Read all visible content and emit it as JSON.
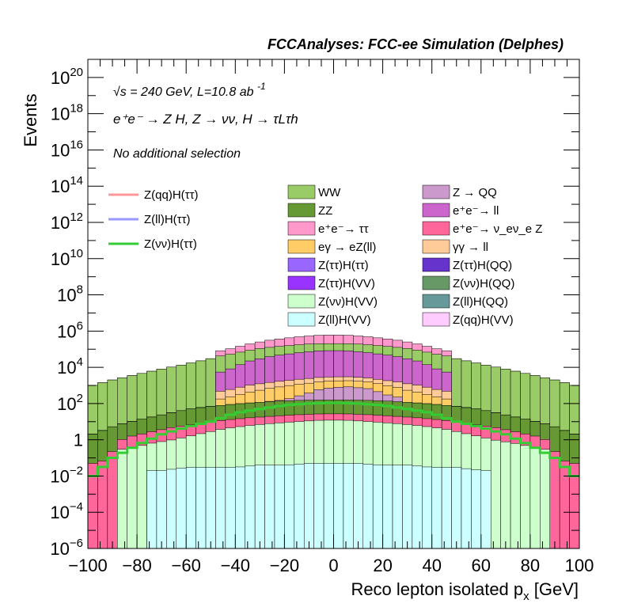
{
  "header": {
    "title": "FCCAnalyses: FCC-ee Simulation (Delphes)"
  },
  "annotations": {
    "energy": "√s = 240 GeV, L=10.8 ab",
    "energy_sup": "-1",
    "process": "e⁺e⁻ → Z H, Z → νν, H → τLτh",
    "selection": "No additional selection"
  },
  "chart_data": {
    "type": "bar",
    "stacked": true,
    "histogram": true,
    "xlabel": "Reco lepton isolated p",
    "xlabel_sub": "x",
    "xlabel_unit": " [GeV]",
    "ylabel": "Events",
    "xlim": [
      -100,
      100
    ],
    "ylim": [
      1e-06,
      1e+21
    ],
    "yscale": "log",
    "bin_width": 4,
    "xticks": [
      "−100",
      "−80",
      "−60",
      "−40",
      "−20",
      "0",
      "20",
      "40",
      "60",
      "80",
      "100"
    ],
    "yticks": [
      "10−6",
      "10−4",
      "10−2",
      "1",
      "102",
      "104",
      "106",
      "108",
      "1010",
      "1012",
      "1014",
      "1016",
      "1018",
      "1020"
    ],
    "legend_placement": "top-center",
    "stack_layers": [
      {
        "name": "Z(ll)H(VV)",
        "color": "#ccffff",
        "values": {
          "-70": 0.02,
          "-60": 0.03,
          "-50": 0.03,
          "-40": 0.03,
          "-30": 0.04,
          "-20": 0.04,
          "-10": 0.05,
          "0": 0.05,
          "10": 0.05,
          "20": 0.04,
          "30": 0.04,
          "40": 0.03,
          "50": 0.03,
          "60": 0.02
        }
      },
      {
        "name": "Z(νν)H(VV)",
        "color": "#ccffcc",
        "values": {
          "-85": 0.3,
          "-75": 0.6,
          "-65": 1.0,
          "-55": 2.0,
          "-45": 4.0,
          "-35": 6.0,
          "-25": 8.0,
          "-15": 10.0,
          "-5": 12.0,
          "5": 12.0,
          "15": 10.0,
          "25": 8.0,
          "35": 6.0,
          "45": 4.0,
          "55": 2.0,
          "65": 1.0,
          "75": 0.6,
          "85": 0.3
        }
      },
      {
        "name": "e⁺e⁻→ ν_eν_e Z",
        "color": "#ff6699",
        "values": {
          "-95": 0.05,
          "-85": 1.0,
          "-75": 2.0,
          "-65": 4.0,
          "-55": 6.0,
          "-45": 8.0,
          "-35": 10.0,
          "-25": 12.0,
          "-15": 14.0,
          "-5": 15.0,
          "5": 15.0,
          "15": 14.0,
          "25": 12.0,
          "35": 10.0,
          "45": 8.0,
          "55": 6.0,
          "65": 4.0,
          "75": 2.0,
          "85": 1.0,
          "95": 0.05
        }
      },
      {
        "name": "ZZ",
        "color": "#669933",
        "values": {
          "-98": 2,
          "-90": 5,
          "-80": 10,
          "-70": 20,
          "-60": 40,
          "-50": 60,
          "-40": 80,
          "-30": 100,
          "-20": 120,
          "-10": 130,
          "0": 130,
          "10": 130,
          "20": 120,
          "30": 100,
          "40": 80,
          "50": 60,
          "60": 40,
          "70": 20,
          "80": 10,
          "90": 5,
          "98": 2
        }
      },
      {
        "name": "Z → QQ",
        "color": "#cc99cc",
        "values": {
          "-25": 5,
          "-15": 100,
          "-5": 500,
          "5": 700,
          "15": 500,
          "25": 100
        }
      },
      {
        "name": "eγ → eZ(ll)",
        "color": "#ffcc66",
        "values": {
          "-45": 100,
          "-35": 300,
          "-25": 600,
          "-15": 900,
          "-5": 1000,
          "5": 1000,
          "15": 900,
          "25": 600,
          "35": 300,
          "45": 100
        }
      },
      {
        "name": "γγ → ll",
        "color": "#ffcc99",
        "values": {
          "-45": 300,
          "-35": 600,
          "-25": 800,
          "-15": 1000,
          "-5": 1200,
          "5": 1200,
          "15": 1000,
          "25": 800,
          "35": 600,
          "45": 300
        }
      },
      {
        "name": "e⁺e⁻→ ll",
        "color": "#cc66cc",
        "values": {
          "-45": 5000,
          "-35": 20000,
          "-25": 40000,
          "-15": 60000,
          "-5": 80000,
          "5": 80000,
          "15": 60000,
          "25": 40000,
          "35": 20000,
          "45": 5000
        }
      },
      {
        "name": "WW",
        "color": "#99cc66",
        "values": {
          "-98": 1000,
          "-90": 2000,
          "-80": 4000,
          "-70": 8000,
          "-60": 15000,
          "-50": 30000,
          "-40": 50000,
          "-30": 80000,
          "-20": 100000,
          "-10": 120000,
          "0": 120000,
          "10": 120000,
          "20": 100000,
          "30": 80000,
          "40": 50000,
          "50": 30000,
          "60": 15000,
          "70": 8000,
          "80": 4000,
          "90": 2000,
          "98": 1000
        }
      },
      {
        "name": "e⁺e⁻→ ττ",
        "color": "#ff99cc",
        "values": {
          "-45": 40000,
          "-35": 100000,
          "-25": 200000,
          "-15": 300000,
          "-5": 400000,
          "5": 400000,
          "15": 300000,
          "25": 200000,
          "35": 100000,
          "45": 40000
        }
      }
    ],
    "lines": [
      {
        "name": "Z(qq)H(ττ)",
        "color": "#ff9999"
      },
      {
        "name": "Z(ll)H(ττ)",
        "color": "#9999ff"
      },
      {
        "name": "Z(νν)H(ττ)",
        "color": "#33cc33",
        "values": {
          "-98": 0.01,
          "-90": 0.1,
          "-80": 0.5,
          "-70": 2,
          "-60": 5,
          "-50": 10,
          "-40": 30,
          "-30": 50,
          "-20": 80,
          "-10": 100,
          "0": 110,
          "10": 100,
          "20": 80,
          "30": 50,
          "40": 30,
          "50": 10,
          "60": 5,
          "70": 2,
          "80": 0.5,
          "90": 0.1,
          "98": 0.01
        }
      }
    ],
    "legend": [
      {
        "name": "WW",
        "color": "#99cc66"
      },
      {
        "name": "Z → QQ",
        "color": "#cc99cc"
      },
      {
        "name": "ZZ",
        "color": "#669933"
      },
      {
        "name": "e⁺e⁻→ ll",
        "color": "#cc66cc"
      },
      {
        "name": "e⁺e⁻→ ττ",
        "color": "#ff99cc"
      },
      {
        "name": "e⁺e⁻→ ν_eν_e Z",
        "color": "#ff6699"
      },
      {
        "name": "eγ → eZ(ll)",
        "color": "#ffcc66"
      },
      {
        "name": "γγ → ll",
        "color": "#ffcc99"
      },
      {
        "name": "Z(ττ)H(ττ)",
        "color": "#9966ff"
      },
      {
        "name": "Z(ττ)H(QQ)",
        "color": "#6633cc"
      },
      {
        "name": "Z(ττ)H(VV)",
        "color": "#9933ff"
      },
      {
        "name": "Z(νν)H(QQ)",
        "color": "#669966"
      },
      {
        "name": "Z(νν)H(VV)",
        "color": "#ccffcc"
      },
      {
        "name": "Z(ll)H(QQ)",
        "color": "#669999"
      },
      {
        "name": "Z(ll)H(VV)",
        "color": "#ccffff"
      },
      {
        "name": "Z(qq)H(VV)",
        "color": "#ffccff"
      }
    ]
  }
}
